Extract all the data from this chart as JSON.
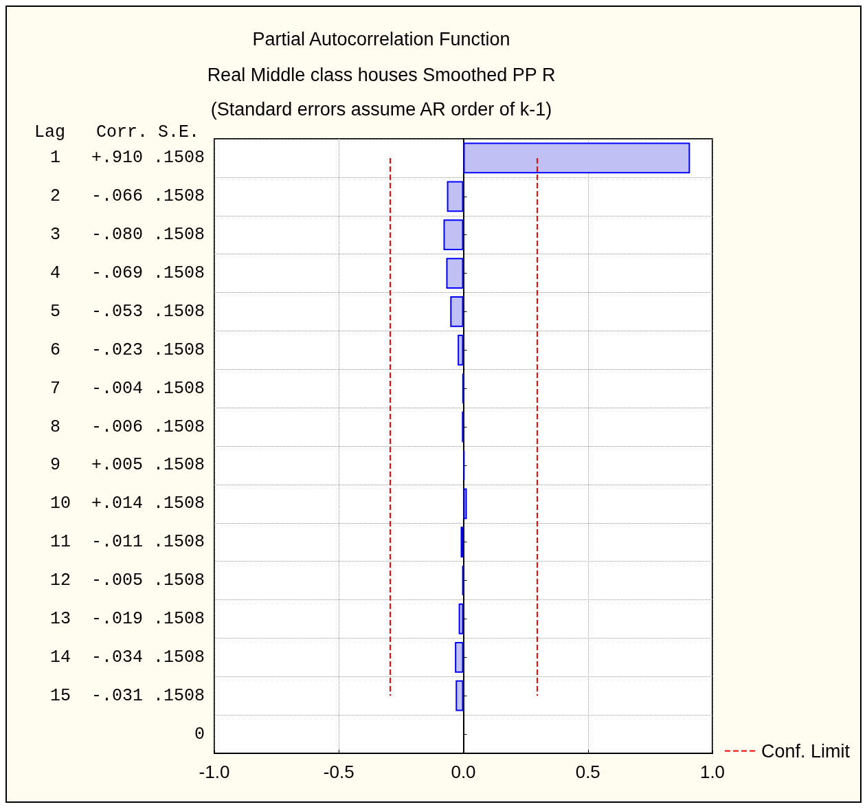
{
  "chart_data": {
    "type": "bar",
    "orientation": "horizontal",
    "title": "Partial Autocorrelation Function",
    "subtitle": "Real Middle class houses Smoothed PP R\n(Standard errors assume AR order of k-1)",
    "ylabel": "Lag   Corr. S.E.",
    "categories": [
      "1   +.910 .1508",
      "2   -.066 .1508",
      "3   -.080 .1508",
      "4   -.069 .1508",
      "5   -.053 .1508",
      "6   -.023 .1508",
      "7   -.004 .1508",
      "8   -.006 .1508",
      "9   +.005 .1508",
      "10  +.014 .1508",
      "11  -.011 .1508",
      "12  -.005 .1508",
      "13  -.019 .1508",
      "14  -.034 .1508",
      "15  -.031 .1508",
      "0"
    ],
    "values": [
      0.91,
      -0.066,
      -0.08,
      -0.069,
      -0.053,
      -0.023,
      -0.004,
      -0.006,
      0.005,
      0.014,
      -0.011,
      -0.005,
      -0.019,
      -0.034,
      -0.031,
      null
    ],
    "colors": [
      "#c0c0f4",
      "#c0c0f4",
      "#c0c0f4",
      "#c0c0f4",
      "#c0c0f4",
      "#c0c0f4",
      "#0000ff",
      "#0000ff",
      "#0000ff",
      "#c0c0f4",
      "#0000ff",
      "#0000ff",
      "#c0c0f4",
      "#c0c0f4",
      "#c0c0f4",
      null
    ],
    "xlim": [
      -1,
      1
    ],
    "xticks": [
      {
        "value": -1,
        "label": "-1.0"
      },
      {
        "value": -0.5,
        "label": "-0.5"
      },
      {
        "value": 0,
        "label": "0.0"
      },
      {
        "value": 0.5,
        "label": "0.5"
      },
      {
        "value": 1,
        "label": "1.0"
      }
    ],
    "ref_lines": [
      {
        "axis": "x",
        "value": -0.2956,
        "label": "Conf. Limit",
        "color": "#ff0000",
        "line_style": "dashed"
      },
      {
        "axis": "x",
        "value": 0.2956,
        "color": "#ff0000",
        "line_style": "dashed"
      }
    ],
    "grid": true,
    "legend": "bottom right"
  }
}
